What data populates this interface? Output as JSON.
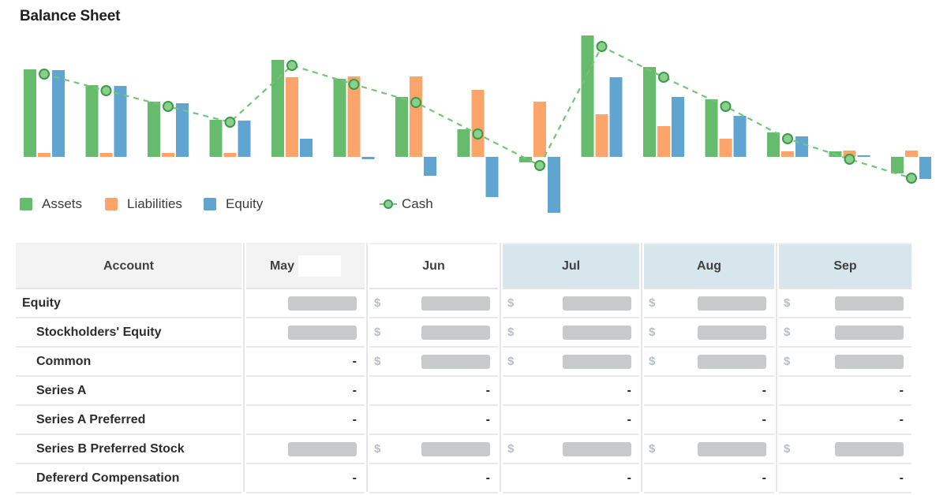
{
  "title": "Balance Sheet",
  "chart_data": {
    "type": "grouped-bar+line",
    "note": "no axis labels or tick values visible; values estimated in arbitrary units from bar pixel heights; baseline = 0",
    "periods": 15,
    "ylim": [
      -75,
      160
    ],
    "grid": false,
    "axes_hidden": true,
    "series": [
      {
        "name": "Assets",
        "color": "#67bb6c",
        "values": [
          111,
          91,
          70,
          47,
          123,
          99,
          76,
          35,
          -7,
          154,
          114,
          73,
          31,
          7,
          -21
        ]
      },
      {
        "name": "Liabilities",
        "color": "#fca469",
        "values": [
          5,
          5,
          5,
          5,
          101,
          102,
          102,
          85,
          70,
          54,
          39,
          23,
          7,
          8,
          8
        ]
      },
      {
        "name": "Equity",
        "color": "#60a5d1",
        "values": [
          110,
          90,
          68,
          46,
          23,
          -3,
          -24,
          -51,
          -71,
          101,
          76,
          52,
          26,
          2,
          -28
        ]
      }
    ],
    "line_series": {
      "name": "Cash",
      "line_color": "#74c578",
      "marker_fill": "#8bce8e",
      "marker_stroke": "#3b9c47",
      "dashed": true,
      "values": [
        105,
        84,
        64,
        44,
        116,
        92,
        69,
        29,
        -11,
        140,
        101,
        64,
        23,
        -3,
        -27
      ]
    }
  },
  "legend": {
    "items": [
      {
        "name": "Assets",
        "color": "#67bb6c",
        "x": 25
      },
      {
        "name": "Liabilities",
        "color": "#fca469",
        "x": 133
      },
      {
        "name": "Equity",
        "color": "#60a5d1",
        "x": 258
      }
    ],
    "cash_item": {
      "name": "Cash",
      "x": 481
    }
  },
  "table": {
    "dollar_sign": "$",
    "dash": "-",
    "columns": [
      {
        "label": "Account",
        "bg": "gray"
      },
      {
        "label": "May",
        "bg": "gray",
        "redaction_patch": true
      },
      {
        "label": "Jun",
        "bg": "white"
      },
      {
        "label": "Jul",
        "bg": "blue"
      },
      {
        "label": "Aug",
        "bg": "blue"
      },
      {
        "label": "Sep",
        "bg": "blue"
      }
    ],
    "rows": [
      {
        "label": "Equity",
        "indent": 0,
        "cells": [
          "block",
          "dollar_block",
          "dollar_block",
          "dollar_block",
          "dollar_block"
        ]
      },
      {
        "label": "Stockholders' Equity",
        "indent": 1,
        "cells": [
          "block",
          "dollar_block",
          "dollar_block",
          "dollar_block",
          "dollar_block"
        ]
      },
      {
        "label": "Common",
        "indent": 1,
        "cells": [
          "dash",
          "dollar_block",
          "dollar_block",
          "dollar_block",
          "dollar_block"
        ]
      },
      {
        "label": "Series A",
        "indent": 1,
        "cells": [
          "dash",
          "dash",
          "dash",
          "dash",
          "dash"
        ]
      },
      {
        "label": "Series A Preferred",
        "indent": 1,
        "cells": [
          "dash",
          "dash",
          "dash",
          "dash",
          "dash"
        ]
      },
      {
        "label": "Series B Preferred Stock",
        "indent": 1,
        "cells": [
          "block",
          "dollar_block",
          "dollar_block",
          "dollar_block",
          "dollar_block"
        ]
      },
      {
        "label": "Defererd Compensation",
        "indent": 1,
        "cells": [
          "dash",
          "dash",
          "dash",
          "dash",
          "dash"
        ]
      }
    ]
  }
}
